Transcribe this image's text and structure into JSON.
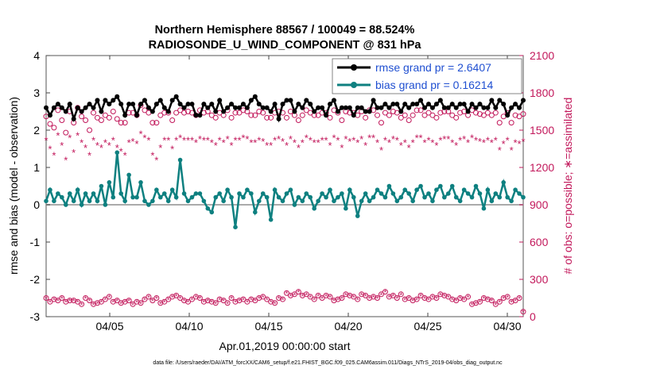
{
  "chart_data": {
    "type": "line",
    "title_line1": "Northern Hemisphere 88567 / 100049 = 88.524%",
    "title_line2": "RADIOSONDE_U_WIND_COMPONENT @ 831 hPa",
    "xlabel": "Apr.01,2019 00:00:00 start",
    "ylabel_left": "rmse and bias (model - observation)",
    "ylabel_right": "# of obs: o=possible; ∗=assimilated",
    "footnote": "data file: /Users/raeder/DAI/ATM_forcXX/CAM6_setup/f.e21.FHIST_BGC.f09_025.CAM6assim.011/Diags_NTrS_2019-04/obs_diag_output.nc",
    "x_range": [
      1,
      31
    ],
    "x_ticks": [
      5,
      10,
      15,
      20,
      25,
      30
    ],
    "x_tick_labels": [
      "04/05",
      "04/10",
      "04/15",
      "04/20",
      "04/25",
      "04/30"
    ],
    "ylim_left": [
      -3,
      4
    ],
    "y_ticks_left": [
      "-3",
      "-2",
      "-1",
      "0",
      "1",
      "2",
      "3",
      "4"
    ],
    "ylim_right": [
      0,
      2100
    ],
    "y_ticks_right": [
      "0",
      "300",
      "600",
      "900",
      "1200",
      "1500",
      "1800",
      "2100"
    ],
    "legend": {
      "rmse": "rmse grand pr = 2.6407",
      "bias": "bias grand pr = 0.16214"
    },
    "series": [
      {
        "name": "rmse",
        "color": "#000000",
        "values": [
          2.6,
          2.4,
          2.6,
          2.7,
          2.6,
          2.5,
          2.7,
          2.3,
          2.6,
          2.5,
          2.6,
          2.7,
          2.6,
          2.8,
          2.5,
          2.8,
          2.7,
          2.8,
          2.9,
          2.7,
          2.4,
          2.7,
          2.7,
          2.4,
          2.7,
          2.8,
          2.6,
          2.5,
          2.7,
          2.8,
          2.6,
          2.5,
          2.8,
          2.9,
          2.7,
          2.6,
          2.7,
          2.7,
          2.4,
          2.4,
          2.7,
          2.6,
          2.7,
          2.5,
          2.8,
          2.5,
          2.6,
          2.7,
          2.6,
          2.6,
          2.7,
          2.6,
          2.8,
          2.9,
          2.7,
          2.6,
          2.6,
          2.5,
          2.7,
          2.3,
          2.7,
          2.8,
          2.8,
          2.5,
          2.7,
          2.6,
          2.8,
          2.7,
          2.5,
          2.6,
          2.6,
          2.4,
          2.7,
          2.8,
          2.5,
          2.6,
          2.6,
          2.6,
          2.4,
          2.6,
          2.6,
          2.5,
          2.5,
          2.8,
          2.6,
          2.6,
          2.7,
          2.6,
          2.7,
          2.7,
          2.5,
          2.7,
          2.6,
          2.7,
          2.7,
          2.8,
          2.6,
          2.7,
          2.6,
          2.7,
          2.8,
          2.6,
          2.6,
          2.7,
          2.6,
          2.7,
          2.7,
          2.5,
          2.7,
          2.6,
          2.7,
          2.6,
          2.6,
          2.8,
          2.6,
          2.8,
          2.7,
          2.4,
          2.6,
          2.7,
          2.6,
          2.8
        ]
      },
      {
        "name": "bias",
        "color": "#0e8080",
        "values": [
          0.1,
          0.4,
          0.1,
          0.3,
          0.2,
          0.0,
          0.3,
          0.1,
          0.4,
          0.0,
          0.3,
          0.1,
          0.3,
          0.1,
          0.5,
          0.0,
          0.6,
          0.2,
          1.4,
          0.3,
          0.1,
          0.8,
          0.2,
          0.2,
          0.6,
          0.1,
          0.0,
          0.1,
          0.4,
          0.2,
          0.3,
          0.1,
          0.4,
          0.2,
          1.2,
          0.3,
          0.1,
          0.2,
          0.3,
          0.3,
          0.1,
          -0.1,
          -0.2,
          0.2,
          0.3,
          0.1,
          0.4,
          0.2,
          -0.6,
          0.3,
          0.2,
          0.4,
          0.3,
          -0.2,
          0.1,
          0.3,
          0.2,
          -0.4,
          0.4,
          0.2,
          0.1,
          0.3,
          0.4,
          0.0,
          0.2,
          0.1,
          0.3,
          0.2,
          -0.1,
          0.1,
          0.3,
          0.2,
          0.4,
          0.1,
          0.2,
          0.3,
          -0.1,
          0.4,
          0.2,
          -0.3,
          0.1,
          0.3,
          0.1,
          0.2,
          0.4,
          0.3,
          0.2,
          0.5,
          0.3,
          0.1,
          0.2,
          0.4,
          0.3,
          0.1,
          0.4,
          0.5,
          0.2,
          0.3,
          0.1,
          0.4,
          0.5,
          0.2,
          0.3,
          0.5,
          0.2,
          0.1,
          0.4,
          0.3,
          0.2,
          0.5,
          0.3,
          -0.1,
          0.4,
          0.1,
          0.3,
          0.2,
          0.6,
          0.2,
          0.1,
          0.4,
          0.3,
          0.2
        ]
      },
      {
        "name": "obs possible",
        "axis": "right",
        "color": "#c2185b",
        "values": [
          1610,
          1550,
          1520,
          1660,
          1580,
          1480,
          1650,
          1560,
          1680,
          1610,
          1580,
          1500,
          1640,
          1600,
          1580,
          1620,
          1600,
          1650,
          1590,
          1560,
          1560,
          1640,
          1640,
          1620,
          1700,
          1660,
          1640,
          1560,
          1560,
          1620,
          1640,
          1640,
          1580,
          1640,
          1660,
          1640,
          1650,
          1640,
          1620,
          1660,
          1640,
          1650,
          1620,
          1600,
          1640,
          1620,
          1660,
          1600,
          1640,
          1640,
          1660,
          1650,
          1620,
          1620,
          1650,
          1640,
          1600,
          1600,
          1640,
          1650,
          1640,
          1600,
          1650,
          1620,
          1580,
          1620,
          1660,
          1640,
          1620,
          1620,
          1640,
          1640,
          1600,
          1660,
          1640,
          1580,
          1650,
          1640,
          1640,
          1620,
          1650,
          1600,
          1660,
          1660,
          1620,
          1560,
          1640,
          1620,
          1650,
          1640,
          1600,
          1620,
          1580,
          1620,
          1660,
          1660,
          1620,
          1640,
          1620,
          1600,
          1640,
          1650,
          1650,
          1620,
          1600,
          1640,
          1650,
          1620,
          1660,
          1640,
          1630,
          1620,
          1640,
          1620,
          1640,
          1560,
          1610,
          1640,
          1560,
          1620,
          1610,
          1630
        ]
      },
      {
        "name": "obs assimilated",
        "axis": "right",
        "color": "#c2185b",
        "values": [
          1420,
          1350,
          1300,
          1460,
          1380,
          1260,
          1440,
          1320,
          1460,
          1400,
          1360,
          1300,
          1420,
          1380,
          1360,
          1400,
          1380,
          1420,
          1360,
          1330,
          1300,
          1400,
          1410,
          1390,
          1470,
          1440,
          1420,
          1300,
          1260,
          1360,
          1420,
          1420,
          1350,
          1420,
          1440,
          1420,
          1420,
          1420,
          1400,
          1430,
          1420,
          1420,
          1400,
          1380,
          1420,
          1400,
          1430,
          1380,
          1420,
          1420,
          1440,
          1430,
          1400,
          1400,
          1420,
          1410,
          1380,
          1380,
          1420,
          1430,
          1410,
          1380,
          1430,
          1400,
          1360,
          1400,
          1440,
          1420,
          1400,
          1400,
          1420,
          1420,
          1380,
          1440,
          1420,
          1360,
          1430,
          1410,
          1420,
          1400,
          1430,
          1380,
          1440,
          1440,
          1400,
          1340,
          1420,
          1400,
          1430,
          1420,
          1380,
          1400,
          1360,
          1400,
          1440,
          1440,
          1400,
          1420,
          1400,
          1380,
          1420,
          1430,
          1430,
          1400,
          1380,
          1420,
          1430,
          1400,
          1440,
          1420,
          1410,
          1400,
          1420,
          1400,
          1420,
          1340,
          1390,
          1420,
          1340,
          1400,
          1390,
          1410
        ]
      },
      {
        "name": "obs possible (low)",
        "axis": "right",
        "color": "#c2185b",
        "values": [
          150,
          120,
          140,
          130,
          150,
          120,
          130,
          130,
          120,
          100,
          150,
          130,
          100,
          110,
          120,
          140,
          160,
          120,
          130,
          110,
          120,
          130,
          100,
          120,
          110,
          140,
          160,
          130,
          150,
          110,
          120,
          140,
          160,
          170,
          150,
          130,
          120,
          140,
          160,
          150,
          120,
          130,
          120,
          110,
          140,
          130,
          110,
          150,
          120,
          130,
          140,
          120,
          140,
          130,
          150,
          160,
          140,
          120,
          110,
          150,
          140,
          190,
          170,
          180,
          200,
          170,
          180,
          160,
          140,
          170,
          150,
          170,
          160,
          130,
          140,
          150,
          180,
          170,
          160,
          140,
          180,
          170,
          150,
          160,
          150,
          180,
          200,
          160,
          170,
          150,
          180,
          140,
          150,
          130,
          140,
          170,
          150,
          140,
          160,
          150,
          180,
          170,
          160,
          140,
          130,
          150,
          140,
          160,
          100,
          110,
          120,
          150,
          140,
          130,
          100,
          120,
          150,
          160,
          120,
          130,
          150,
          40
        ]
      }
    ]
  }
}
